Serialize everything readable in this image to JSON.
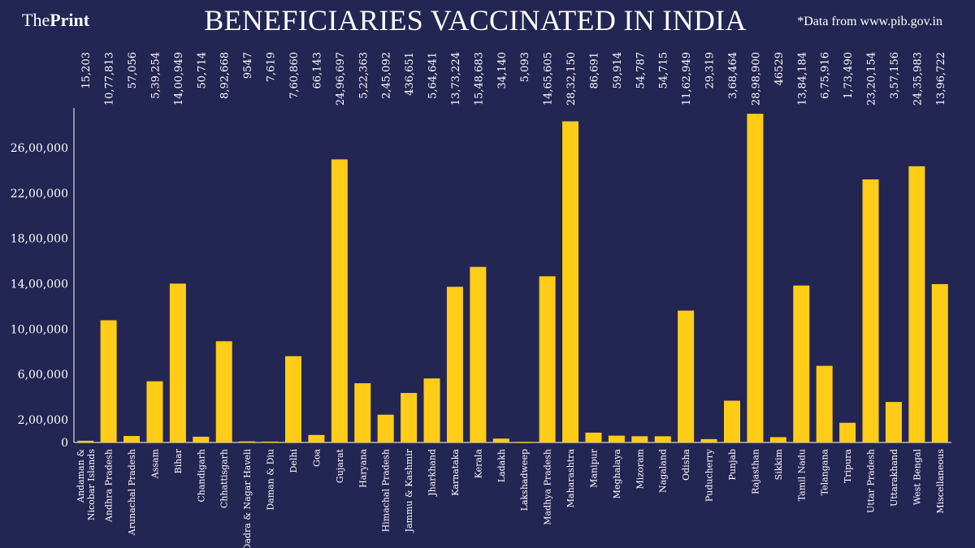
{
  "header": {
    "brand_the": "The",
    "brand_print": "Print",
    "title": "BENEFICIARIES VACCINATED IN INDIA",
    "source": "*Data from www.pib.gov.in"
  },
  "colors": {
    "background": "#232552",
    "bar": "#FFCD17",
    "text": "#ffffff"
  },
  "chart_data": {
    "type": "bar",
    "title": "BENEFICIARIES VACCINATED IN INDIA",
    "categories": [
      "Andaman & Nicobar Islands",
      "Andhra Pradesh",
      "Arunachal Pradesh",
      "Assam",
      "Bihar",
      "Chandigarh",
      "Chhattisgarh",
      "Dadra & Nagar Haveli",
      "Daman & Diu",
      "Delhi",
      "Goa",
      "Gujarat",
      "Haryana",
      "Himachal Pradesh",
      "Jammu & Kashmir",
      "Jharkhand",
      "Karnataka",
      "Kerala",
      "Ladakh",
      "Lakshadweep",
      "Madhya Pradesh",
      "Maharashtra",
      "Manipur",
      "Meghalaya",
      "Mizoram",
      "Nagaland",
      "Odisha",
      "Puducherry",
      "Punjab",
      "Rajasthan",
      "Sikkim",
      "Tamil Nadu",
      "Telangana",
      "Tripura",
      "Uttar Pradesh",
      "Uttarakhand",
      "West Bengal",
      "Miscellaneous"
    ],
    "values": [
      15203,
      1077813,
      57056,
      539254,
      1400949,
      50714,
      892668,
      9547,
      7619,
      760860,
      66143,
      2496697,
      522363,
      245092,
      436651,
      564641,
      1373224,
      1548683,
      34140,
      5093,
      1465605,
      2832150,
      86691,
      59914,
      54787,
      54715,
      1162949,
      29319,
      368464,
      2898900,
      46529,
      1384184,
      675916,
      173490,
      2320154,
      357156,
      2435983,
      1396722
    ],
    "value_labels": [
      "15,203",
      "10,77,813",
      "57,056",
      "5,39,254",
      "14,00,949",
      "50,714",
      "8,92,668",
      "9547",
      "7,619",
      "7,60,860",
      "66,143",
      "24,96,697",
      "5,22,363",
      "2,45,092",
      "436,651",
      "5,64,641",
      "13,73,224",
      "15,48,683",
      "34,140",
      "5,093",
      "14,65,605",
      "28,32,150",
      "86,691",
      "59,914",
      "54,787",
      "54,715",
      "11,62,949",
      "29,319",
      "3,68,464",
      "28,98,900",
      "46529",
      "13,84,184",
      "6,75,916",
      "1,73,490",
      "23,20,154",
      "3,57,156",
      "24,35,983",
      "13,96,722"
    ],
    "y_ticks": [
      "0",
      "2,00,000",
      "6,00,000",
      "10,00,000",
      "14,00,000",
      "18,00,000",
      "22,00,000",
      "26,00,000"
    ],
    "ylim": [
      0,
      2900000
    ],
    "xlabel": "",
    "ylabel": "",
    "grid": false,
    "legend": "none"
  }
}
